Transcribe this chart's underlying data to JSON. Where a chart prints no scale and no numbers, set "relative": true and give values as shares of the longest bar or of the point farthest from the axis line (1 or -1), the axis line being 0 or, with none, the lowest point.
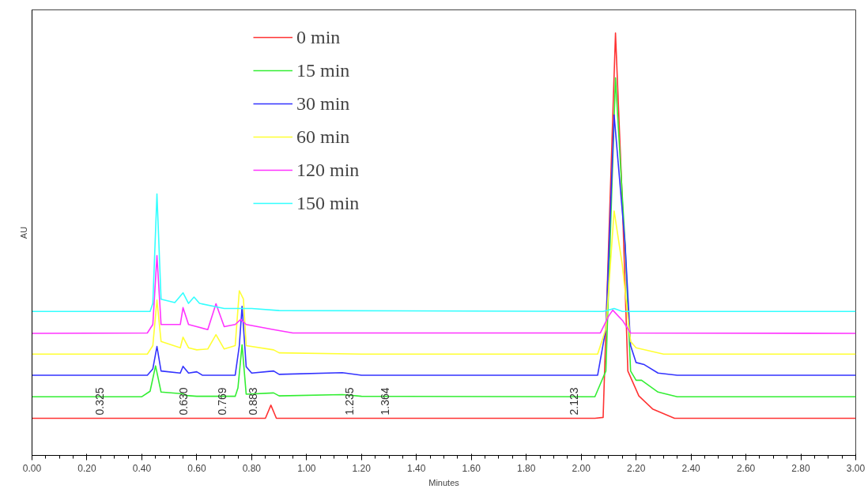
{
  "chart_data": {
    "type": "line",
    "relative": true,
    "xlabel": "Minutes",
    "ylabel": "AU",
    "xlim": [
      0,
      3
    ],
    "xticks": [
      {
        "value": 0,
        "label": "0.00"
      },
      {
        "value": 0.2,
        "label": "0.20"
      },
      {
        "value": 0.4,
        "label": "0.40"
      },
      {
        "value": 0.6,
        "label": "0.60"
      },
      {
        "value": 0.8,
        "label": "0.80"
      },
      {
        "value": 1.0,
        "label": "1.00"
      },
      {
        "value": 1.2,
        "label": "1.20"
      },
      {
        "value": 1.4,
        "label": "1.40"
      },
      {
        "value": 1.6,
        "label": "1.60"
      },
      {
        "value": 1.8,
        "label": "1.80"
      },
      {
        "value": 2.0,
        "label": "2.00"
      },
      {
        "value": 2.2,
        "label": "2.20"
      },
      {
        "value": 2.4,
        "label": "2.40"
      },
      {
        "value": 2.6,
        "label": "2.60"
      },
      {
        "value": 2.8,
        "label": "2.80"
      },
      {
        "value": 3.0,
        "label": "3.00"
      }
    ],
    "tick_labels": "x",
    "grid": false,
    "legend": "top",
    "line_style": "solid",
    "marker": "none",
    "series": [
      {
        "name": "0 min",
        "color": "#ff3333",
        "x": [
          0,
          0.85,
          0.87,
          0.89,
          2.05,
          2.08,
          2.1,
          2.125,
          2.15,
          2.17,
          2.21,
          2.26,
          2.34,
          3.0
        ],
        "values": [
          0.088,
          0.088,
          0.119,
          0.088,
          0.088,
          0.09,
          0.5,
          1.0,
          0.6,
          0.2,
          0.141,
          0.11,
          0.088,
          0.088
        ]
      },
      {
        "name": "15 min",
        "color": "#33ee33",
        "x": [
          0,
          0.4,
          0.43,
          0.45,
          0.47,
          0.55,
          0.56,
          0.6,
          0.74,
          0.75,
          0.765,
          0.78,
          0.88,
          0.9,
          1.13,
          1.2,
          2.05,
          2.09,
          2.125,
          2.16,
          2.18,
          2.2,
          2.22,
          2.28,
          2.35,
          3.0
        ],
        "values": [
          0.139,
          0.139,
          0.152,
          0.212,
          0.15,
          0.146,
          0.142,
          0.14,
          0.14,
          0.16,
          0.262,
          0.145,
          0.148,
          0.141,
          0.144,
          0.14,
          0.139,
          0.2,
          0.894,
          0.5,
          0.2,
          0.178,
          0.178,
          0.15,
          0.139,
          0.139
        ]
      },
      {
        "name": "30 min",
        "color": "#3333ff",
        "x": [
          0,
          0.42,
          0.44,
          0.455,
          0.47,
          0.54,
          0.55,
          0.57,
          0.6,
          0.62,
          0.74,
          0.755,
          0.765,
          0.78,
          0.8,
          0.88,
          0.9,
          1.13,
          1.2,
          2.06,
          2.09,
          2.12,
          2.16,
          2.18,
          2.2,
          2.23,
          2.28,
          2.35,
          3.0
        ],
        "values": [
          0.19,
          0.19,
          0.205,
          0.258,
          0.2,
          0.195,
          0.211,
          0.195,
          0.198,
          0.19,
          0.19,
          0.26,
          0.353,
          0.21,
          0.195,
          0.2,
          0.192,
          0.196,
          0.19,
          0.19,
          0.3,
          0.806,
          0.5,
          0.26,
          0.22,
          0.215,
          0.195,
          0.19,
          0.19
        ]
      },
      {
        "name": "60 min",
        "color": "#ffff33",
        "x": [
          0,
          0.42,
          0.44,
          0.455,
          0.47,
          0.54,
          0.55,
          0.57,
          0.6,
          0.64,
          0.67,
          0.7,
          0.74,
          0.755,
          0.77,
          0.78,
          0.88,
          0.9,
          1.2,
          2.06,
          2.09,
          2.12,
          2.15,
          2.18,
          2.2,
          2.3,
          3.0
        ],
        "values": [
          0.24,
          0.24,
          0.26,
          0.368,
          0.27,
          0.255,
          0.28,
          0.255,
          0.25,
          0.252,
          0.286,
          0.252,
          0.26,
          0.39,
          0.37,
          0.26,
          0.25,
          0.243,
          0.24,
          0.24,
          0.3,
          0.579,
          0.45,
          0.27,
          0.255,
          0.24,
          0.24
        ]
      },
      {
        "name": "120 min",
        "color": "#ff33ff",
        "x": [
          0,
          0.42,
          0.44,
          0.455,
          0.47,
          0.54,
          0.55,
          0.57,
          0.6,
          0.64,
          0.67,
          0.7,
          0.74,
          0.76,
          0.78,
          0.88,
          0.95,
          2.07,
          2.1,
          2.115,
          2.15,
          2.18,
          3.0
        ],
        "values": [
          0.289,
          0.29,
          0.31,
          0.473,
          0.31,
          0.31,
          0.35,
          0.31,
          0.305,
          0.298,
          0.359,
          0.305,
          0.31,
          0.322,
          0.31,
          0.298,
          0.29,
          0.29,
          0.33,
          0.344,
          0.32,
          0.29,
          0.289
        ]
      },
      {
        "name": "150 min",
        "color": "#33ffff",
        "x": [
          0,
          0.43,
          0.44,
          0.455,
          0.47,
          0.52,
          0.55,
          0.57,
          0.59,
          0.61,
          0.7,
          0.8,
          0.9,
          2.08,
          2.12,
          2.15,
          3.0
        ],
        "values": [
          0.341,
          0.341,
          0.36,
          0.619,
          0.37,
          0.362,
          0.385,
          0.36,
          0.375,
          0.36,
          0.348,
          0.348,
          0.343,
          0.341,
          0.348,
          0.341,
          0.341
        ]
      }
    ],
    "annotations": [
      {
        "text": "0.325",
        "x": 0.325,
        "y": 0.088
      },
      {
        "text": "0.630",
        "x": 0.63,
        "y": 0.088
      },
      {
        "text": "0.769",
        "x": 0.769,
        "y": 0.088
      },
      {
        "text": "0.883",
        "x": 0.883,
        "y": 0.088
      },
      {
        "text": "1.235",
        "x": 1.235,
        "y": 0.088
      },
      {
        "text": "1.364",
        "x": 1.364,
        "y": 0.088
      },
      {
        "text": "2.123",
        "x": 2.05,
        "y": 0.088
      }
    ]
  }
}
